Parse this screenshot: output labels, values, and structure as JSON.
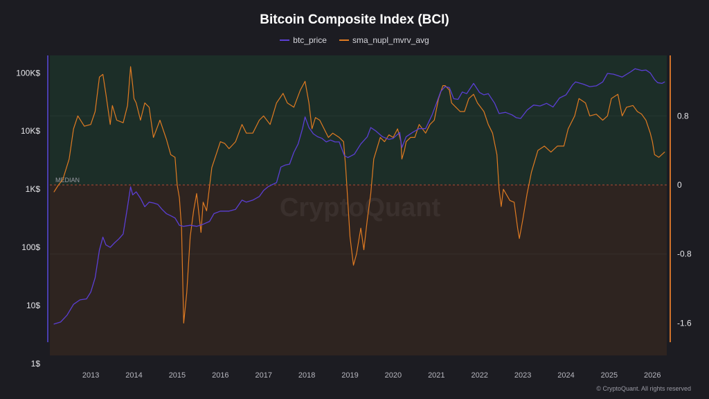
{
  "chart_data": {
    "type": "line",
    "title": "Bitcoin Composite Index (BCI)",
    "watermark": "CryptoQuant",
    "copyright": "© CryptoQuant. All rights reserved",
    "median_label": "MEDIAN",
    "grid": true,
    "legend_position": "top-center",
    "colors": {
      "btc_price": "#5b3fd4",
      "sma_nupl_mvrv_avg": "#e07b22",
      "upper_zone": "#1c2e28",
      "lower_zone": "#2e2420",
      "median_line": "#b24a34"
    },
    "x_ticks": [
      "2013",
      "2014",
      "2015",
      "2016",
      "2017",
      "2018",
      "2019",
      "2020",
      "2021",
      "2022",
      "2023",
      "2024",
      "2025",
      "2026"
    ],
    "left_axis": {
      "scale": "log",
      "ticks": [
        "1$",
        "10$",
        "100$",
        "1K$",
        "10K$",
        "100K$"
      ],
      "ylim": [
        1,
        200000
      ]
    },
    "right_axis": {
      "ticks": [
        "0.8",
        "0",
        "-0.8",
        "-1.6"
      ],
      "ylim": [
        -2.07,
        1.5
      ]
    },
    "series": [
      {
        "name": "btc_price",
        "axis": "left",
        "x": [
          2012.15,
          2012.3,
          2012.45,
          2012.6,
          2012.75,
          2012.9,
          2013.0,
          2013.1,
          2013.2,
          2013.28,
          2013.35,
          2013.45,
          2013.55,
          2013.65,
          2013.75,
          2013.85,
          2013.92,
          2013.97,
          2014.05,
          2014.15,
          2014.25,
          2014.35,
          2014.45,
          2014.55,
          2014.65,
          2014.75,
          2014.85,
          2014.95,
          2015.05,
          2015.15,
          2015.3,
          2015.45,
          2015.6,
          2015.75,
          2015.85,
          2016.0,
          2016.2,
          2016.35,
          2016.5,
          2016.6,
          2016.75,
          2016.9,
          2017.0,
          2017.1,
          2017.2,
          2017.3,
          2017.4,
          2017.5,
          2017.6,
          2017.7,
          2017.8,
          2017.9,
          2017.96,
          2018.05,
          2018.15,
          2018.25,
          2018.35,
          2018.45,
          2018.55,
          2018.65,
          2018.75,
          2018.87,
          2018.95,
          2019.1,
          2019.25,
          2019.4,
          2019.48,
          2019.6,
          2019.75,
          2019.9,
          2020.0,
          2020.15,
          2020.2,
          2020.3,
          2020.45,
          2020.6,
          2020.75,
          2020.9,
          2021.0,
          2021.1,
          2021.2,
          2021.3,
          2021.4,
          2021.5,
          2021.6,
          2021.7,
          2021.86,
          2022.0,
          2022.1,
          2022.2,
          2022.35,
          2022.45,
          2022.6,
          2022.75,
          2022.85,
          2022.95,
          2023.1,
          2023.25,
          2023.4,
          2023.55,
          2023.7,
          2023.85,
          2024.0,
          2024.15,
          2024.22,
          2024.4,
          2024.55,
          2024.7,
          2024.85,
          2024.96,
          2025.1,
          2025.3,
          2025.5,
          2025.6,
          2025.75,
          2025.85,
          2025.95,
          2026.05,
          2026.12,
          2026.22,
          2026.28
        ],
        "y": [
          4.8,
          5.2,
          6.8,
          10.5,
          12.5,
          13,
          17,
          30,
          90,
          150,
          110,
          100,
          120,
          140,
          170,
          500,
          1100,
          800,
          900,
          700,
          500,
          600,
          580,
          550,
          450,
          380,
          350,
          320,
          240,
          230,
          240,
          230,
          250,
          280,
          380,
          420,
          420,
          450,
          650,
          600,
          650,
          750,
          950,
          1100,
          1200,
          1300,
          2400,
          2600,
          2700,
          4300,
          6000,
          11000,
          17500,
          11500,
          9000,
          8000,
          7500,
          6500,
          7000,
          6500,
          6500,
          3800,
          3500,
          4000,
          6000,
          8000,
          11500,
          10000,
          8000,
          7200,
          7500,
          9500,
          5200,
          8000,
          9500,
          11000,
          11000,
          19000,
          30000,
          48000,
          58000,
          56000,
          36000,
          35000,
          47000,
          44000,
          66000,
          46000,
          42000,
          44000,
          30000,
          20000,
          21000,
          19000,
          17000,
          16500,
          23000,
          28000,
          27000,
          30000,
          26000,
          37000,
          42000,
          62000,
          70000,
          64000,
          58000,
          60000,
          70000,
          98000,
          95000,
          85000,
          105000,
          118000,
          110000,
          112000,
          100000,
          77000,
          68000,
          66000,
          70000
        ]
      },
      {
        "name": "sma_nupl_mvrv_avg",
        "axis": "right",
        "x": [
          2012.15,
          2012.25,
          2012.35,
          2012.5,
          2012.6,
          2012.7,
          2012.85,
          2013.0,
          2013.1,
          2013.2,
          2013.28,
          2013.35,
          2013.45,
          2013.5,
          2013.6,
          2013.75,
          2013.85,
          2013.92,
          2013.97,
          2014.0,
          2014.05,
          2014.15,
          2014.25,
          2014.35,
          2014.45,
          2014.6,
          2014.75,
          2014.85,
          2014.95,
          2015.0,
          2015.05,
          2015.1,
          2015.15,
          2015.22,
          2015.3,
          2015.38,
          2015.45,
          2015.55,
          2015.6,
          2015.68,
          2015.8,
          2015.9,
          2016.0,
          2016.1,
          2016.2,
          2016.35,
          2016.5,
          2016.6,
          2016.75,
          2016.9,
          2017.0,
          2017.15,
          2017.3,
          2017.45,
          2017.55,
          2017.7,
          2017.85,
          2017.96,
          2018.05,
          2018.12,
          2018.2,
          2018.3,
          2018.4,
          2018.5,
          2018.6,
          2018.75,
          2018.85,
          2018.9,
          2018.95,
          2019.0,
          2019.08,
          2019.15,
          2019.25,
          2019.32,
          2019.4,
          2019.48,
          2019.55,
          2019.7,
          2019.8,
          2019.9,
          2020.0,
          2020.1,
          2020.18,
          2020.2,
          2020.26,
          2020.3,
          2020.4,
          2020.5,
          2020.6,
          2020.75,
          2020.85,
          2020.95,
          2021.05,
          2021.15,
          2021.2,
          2021.3,
          2021.35,
          2021.45,
          2021.55,
          2021.65,
          2021.75,
          2021.86,
          2021.95,
          2022.1,
          2022.2,
          2022.3,
          2022.4,
          2022.45,
          2022.5,
          2022.55,
          2022.7,
          2022.8,
          2022.88,
          2022.92,
          2023.0,
          2023.1,
          2023.2,
          2023.35,
          2023.5,
          2023.65,
          2023.8,
          2023.95,
          2024.05,
          2024.2,
          2024.3,
          2024.45,
          2024.55,
          2024.7,
          2024.85,
          2024.96,
          2025.05,
          2025.2,
          2025.3,
          2025.4,
          2025.55,
          2025.65,
          2025.75,
          2025.85,
          2025.95,
          2026.0,
          2026.05,
          2026.15,
          2026.28
        ],
        "y": [
          -0.08,
          0.0,
          0.06,
          0.3,
          0.65,
          0.8,
          0.68,
          0.7,
          0.85,
          1.25,
          1.28,
          1.05,
          0.7,
          0.92,
          0.75,
          0.72,
          0.92,
          1.37,
          1.15,
          1.0,
          0.95,
          0.75,
          0.95,
          0.9,
          0.55,
          0.75,
          0.53,
          0.35,
          0.32,
          0.0,
          -0.15,
          -0.5,
          -1.6,
          -1.25,
          -0.6,
          -0.3,
          -0.1,
          -0.55,
          -0.2,
          -0.3,
          0.2,
          0.35,
          0.5,
          0.48,
          0.42,
          0.5,
          0.7,
          0.6,
          0.6,
          0.75,
          0.8,
          0.7,
          0.95,
          1.06,
          0.95,
          0.9,
          1.1,
          1.2,
          0.95,
          0.65,
          0.78,
          0.75,
          0.65,
          0.55,
          0.6,
          0.55,
          0.5,
          0.2,
          -0.2,
          -0.6,
          -0.93,
          -0.8,
          -0.5,
          -0.75,
          -0.4,
          -0.1,
          0.3,
          0.55,
          0.5,
          0.58,
          0.55,
          0.65,
          0.5,
          0.3,
          0.4,
          0.5,
          0.55,
          0.55,
          0.7,
          0.6,
          0.7,
          0.75,
          1.0,
          1.15,
          1.15,
          1.1,
          0.95,
          0.9,
          0.85,
          0.85,
          1.0,
          1.05,
          0.95,
          0.85,
          0.7,
          0.6,
          0.35,
          -0.05,
          -0.25,
          -0.05,
          -0.18,
          -0.2,
          -0.5,
          -0.62,
          -0.4,
          -0.1,
          0.15,
          0.4,
          0.45,
          0.38,
          0.45,
          0.45,
          0.65,
          0.8,
          1.0,
          0.95,
          0.8,
          0.82,
          0.75,
          0.8,
          1.0,
          1.05,
          0.8,
          0.9,
          0.92,
          0.85,
          0.82,
          0.75,
          0.6,
          0.5,
          0.35,
          0.32,
          0.38
        ]
      }
    ]
  }
}
